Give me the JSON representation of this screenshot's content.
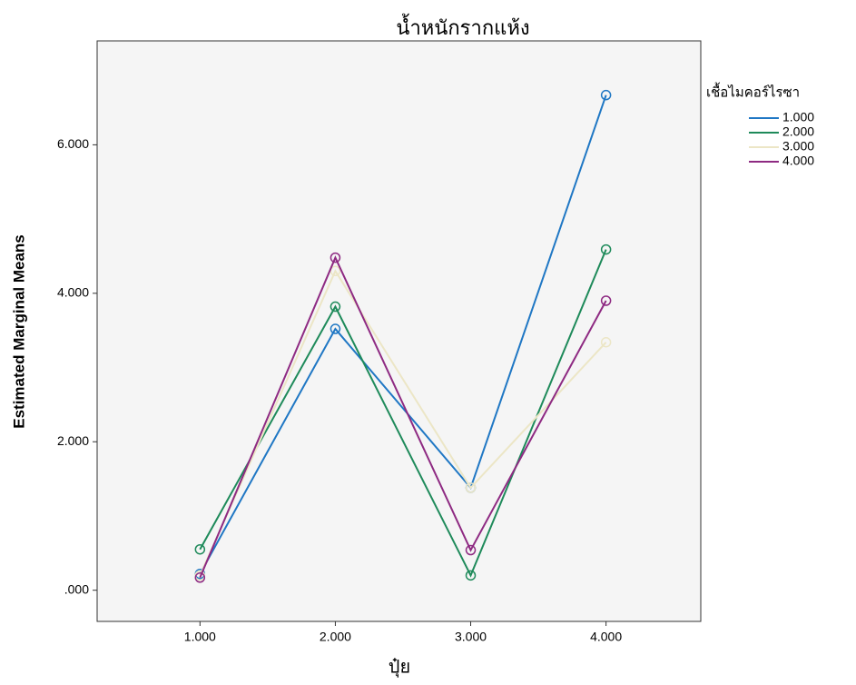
{
  "chart_data": {
    "type": "line",
    "title": "น้ำหนักรากแห้ง",
    "x_label": "ปุ๋ย",
    "y_label": "Estimated Marginal Means",
    "legend_title": "เชื้อไมคอร์ไรซา",
    "legend_position": "right",
    "x": [
      1,
      2,
      3,
      4
    ],
    "series": [
      {
        "name": "1.000",
        "color": "#1f77c4",
        "values": [
          0.22,
          3.52,
          1.38,
          6.67
        ]
      },
      {
        "name": "2.000",
        "color": "#1e8a5a",
        "values": [
          0.55,
          3.82,
          0.2,
          4.59
        ]
      },
      {
        "name": "3.000",
        "color": "#ece6c6",
        "values": [
          0.2,
          4.3,
          1.38,
          3.34
        ]
      },
      {
        "name": "4.000",
        "color": "#8e2a82",
        "values": [
          0.17,
          4.48,
          0.54,
          3.9
        ]
      }
    ],
    "xlim": [
      0.24,
      4.7
    ],
    "xticks": [
      {
        "value": 1,
        "label": "1.000"
      },
      {
        "value": 2,
        "label": "2.000"
      },
      {
        "value": 3,
        "label": "3.000"
      },
      {
        "value": 4,
        "label": "4.000"
      }
    ],
    "ylim": [
      -0.42,
      7.4
    ],
    "yticks": [
      {
        "value": 0,
        "label": ".000"
      },
      {
        "value": 2,
        "label": "2.000"
      },
      {
        "value": 4,
        "label": "4.000"
      },
      {
        "value": 6,
        "label": "6.000"
      }
    ],
    "markers": true
  }
}
